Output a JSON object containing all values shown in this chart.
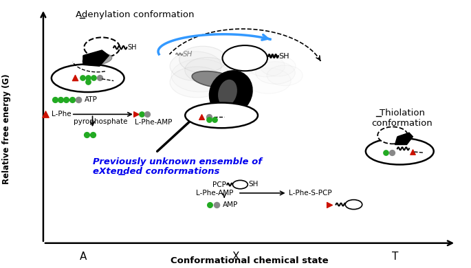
{
  "xlabel": "Conformational chemical state",
  "ylabel": "Relative free energy (G)",
  "x_ticks": [
    "A",
    "X",
    "T"
  ],
  "x_positions": [
    0.175,
    0.5,
    0.84
  ],
  "adenylation_title": "Adenylation conformation",
  "thiolation_title": "Thiolation\nconformation",
  "blue_text_line1": "Previously unknown ensemble of",
  "blue_text_line2": "eXtended conformations",
  "blue_color": "#0000EE",
  "green_color": "#22AA22",
  "red_color": "#CC1100",
  "gray_color": "#888888",
  "dark_gray": "#444444",
  "light_gray": "#BBBBBB",
  "lPhe_label": "L-Phe",
  "lPheAMP_label": "L-Phe-AMP",
  "pyrophosphate_label": "pyrophosphate",
  "ATP_label": "ATP",
  "PCP_label": "PCP",
  "AMP_label": "AMP",
  "SH_label": "SH",
  "lPheSPCP_label": "L-Phe-S-PCP",
  "lPheAMP_label2": "L-Phe-AMP"
}
